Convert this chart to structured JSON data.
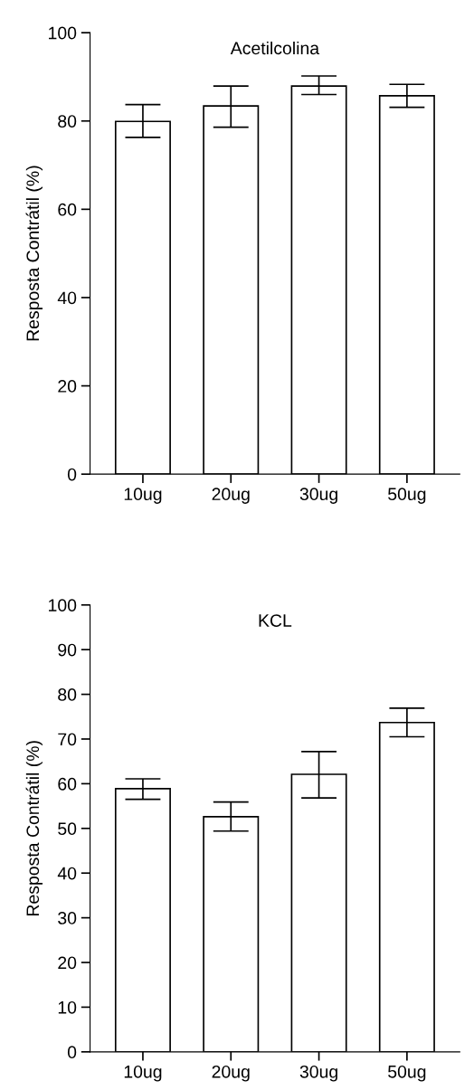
{
  "chart_data": [
    {
      "type": "bar",
      "title": "Acetilcolina",
      "ylabel": "Resposta Contrátil (%)",
      "categories": [
        "10ug",
        "20ug",
        "30ug",
        "50ug"
      ],
      "values": [
        79.9,
        83.4,
        87.9,
        85.7
      ],
      "color": "#ffffff",
      "errors": [
        [
          76.3,
          83.7
        ],
        [
          78.6,
          87.9
        ],
        [
          86.0,
          90.2
        ],
        [
          83.1,
          88.3
        ]
      ],
      "ylim": [
        0,
        100
      ],
      "yticks": [
        0,
        20,
        40,
        60,
        80,
        100
      ],
      "grid": false,
      "legend": false
    },
    {
      "type": "bar",
      "title": "KCL",
      "ylabel": "Resposta Contrátil (%)",
      "categories": [
        "10ug",
        "20ug",
        "30ug",
        "50ug"
      ],
      "values": [
        58.9,
        52.6,
        62.1,
        73.7
      ],
      "color": "#ffffff",
      "errors": [
        [
          56.5,
          61.1
        ],
        [
          49.4,
          55.9
        ],
        [
          56.8,
          67.2
        ],
        [
          70.5,
          76.9
        ]
      ],
      "ylim": [
        0,
        100
      ],
      "yticks": [
        0,
        10,
        20,
        30,
        40,
        50,
        60,
        70,
        80,
        90,
        100
      ],
      "grid": false,
      "legend": false
    }
  ]
}
